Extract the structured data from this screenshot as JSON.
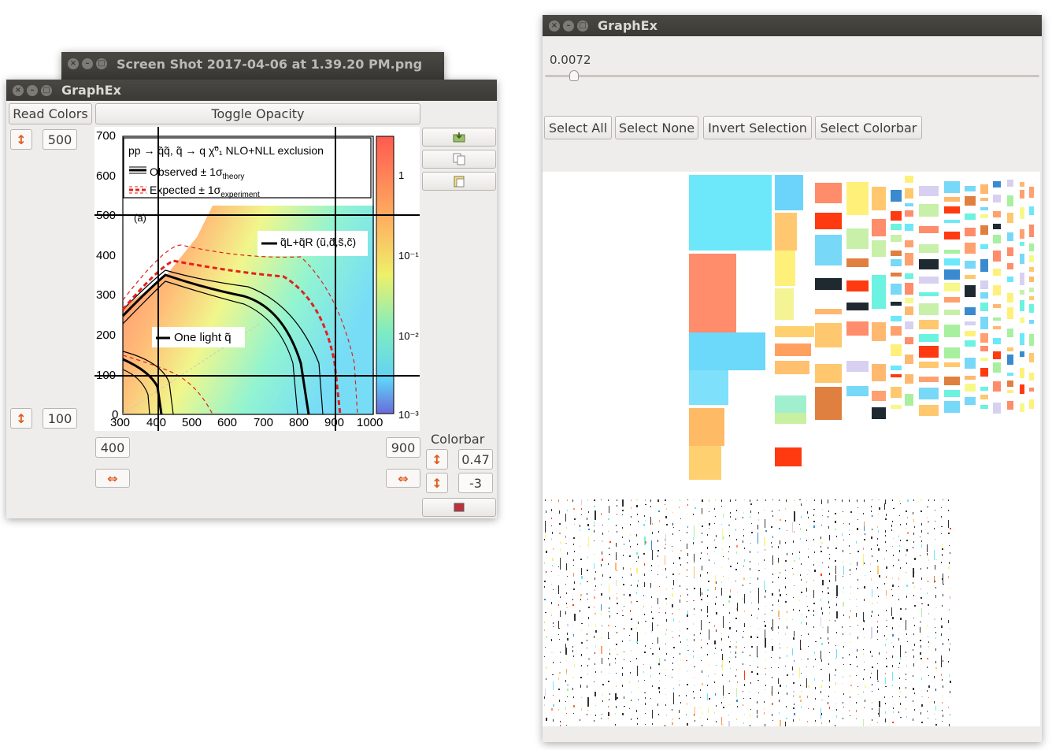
{
  "screenshot_window": {
    "title": "Screen Shot 2017-04-06 at 1.39.20 PM.png",
    "controls": [
      "×",
      "–",
      "□"
    ]
  },
  "left_window": {
    "title": "GraphEx",
    "read_colors_label": "Read Colors",
    "toggle_opacity_label": "Toggle Opacity",
    "y_top_value": "500",
    "y_bottom_value": "100",
    "x_left_value": "400",
    "x_right_value": "900",
    "colorbar_label": "Colorbar",
    "colorbar_top_value": "0.47",
    "colorbar_bottom_value": "-3",
    "spin_icon": "↕",
    "hspin_icon": "⇔",
    "toolbar_icons": [
      "save-icon",
      "copy-icon",
      "paste-icon",
      "image-icon"
    ],
    "plot": {
      "title_line": "pp → q̃q̃, q̃ → q χ̃⁰₁  NLO+NLL exclusion",
      "legend_observed": "Observed ± 1σ",
      "legend_observed_sub": "theory",
      "legend_expected": "Expected ± 1σ",
      "legend_expected_sub": "experiment",
      "panel_label": "(a)",
      "annotation_lr": "q̃L+q̃R (ũ,d̃,s̃,c̃)",
      "annotation_one": "One light q̃",
      "y_ticks": [
        "700",
        "600",
        "500",
        "400",
        "300",
        "200",
        "100",
        "0"
      ],
      "x_ticks": [
        "300",
        "400",
        "500",
        "600",
        "700",
        "800",
        "900",
        "1000"
      ],
      "colorbar_ticks": [
        "1",
        "10⁻¹",
        "10⁻²",
        "10⁻³"
      ]
    }
  },
  "right_window": {
    "title": "GraphEx",
    "slider_value": "0.0072",
    "slider_fraction": 0.05,
    "buttons": [
      "Select All",
      "Select None",
      "Invert Selection",
      "Select Colorbar"
    ]
  }
}
